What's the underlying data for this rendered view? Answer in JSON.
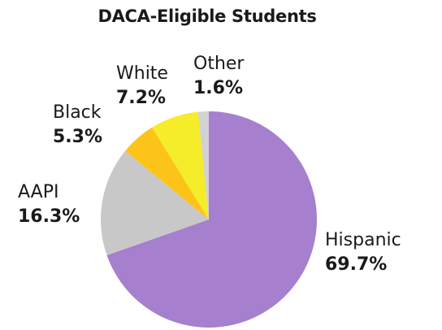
{
  "chart_data": {
    "type": "pie",
    "title": "DACA-Eligible Students",
    "slices": [
      {
        "label": "Hispanic",
        "value": 69.7,
        "value_label": "69.7%",
        "color": "#a67fce"
      },
      {
        "label": "AAPI",
        "value": 16.3,
        "value_label": "16.3%",
        "color": "#c8c8c8"
      },
      {
        "label": "Black",
        "value": 5.3,
        "value_label": "5.3%",
        "color": "#fcc419"
      },
      {
        "label": "White",
        "value": 7.2,
        "value_label": "7.2%",
        "color": "#f5ec2a"
      },
      {
        "label": "Other",
        "value": 1.6,
        "value_label": "1.6%",
        "color": "#d2d2d2"
      }
    ],
    "start": "12 o'clock",
    "direction": "clockwise",
    "legend": "none",
    "labels": "outside"
  }
}
